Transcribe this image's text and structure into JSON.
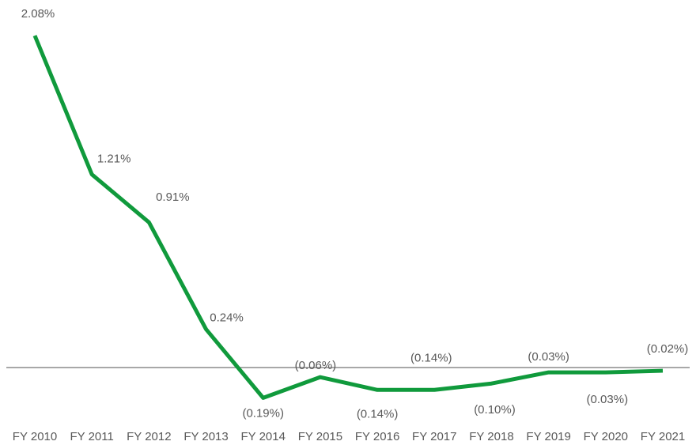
{
  "chart_data": {
    "type": "line",
    "categories": [
      "FY 2010",
      "FY 2011",
      "FY 2012",
      "FY 2013",
      "FY 2014",
      "FY 2015",
      "FY 2016",
      "FY 2017",
      "FY 2018",
      "FY 2019",
      "FY 2020",
      "FY 2021"
    ],
    "values": [
      2.08,
      1.21,
      0.91,
      0.24,
      -0.19,
      -0.06,
      -0.14,
      -0.14,
      -0.1,
      -0.03,
      -0.03,
      -0.02
    ],
    "value_labels": [
      "2.08%",
      "1.21%",
      "0.91%",
      "0.24%",
      "(0.19%)",
      "(0.06%)",
      "(0.14%)",
      "(0.14%)",
      "(0.10%)",
      "(0.03%)",
      "(0.03%)",
      "(0.02%)"
    ],
    "color": "#109a3c",
    "ylim": [
      -0.3,
      2.2
    ]
  }
}
